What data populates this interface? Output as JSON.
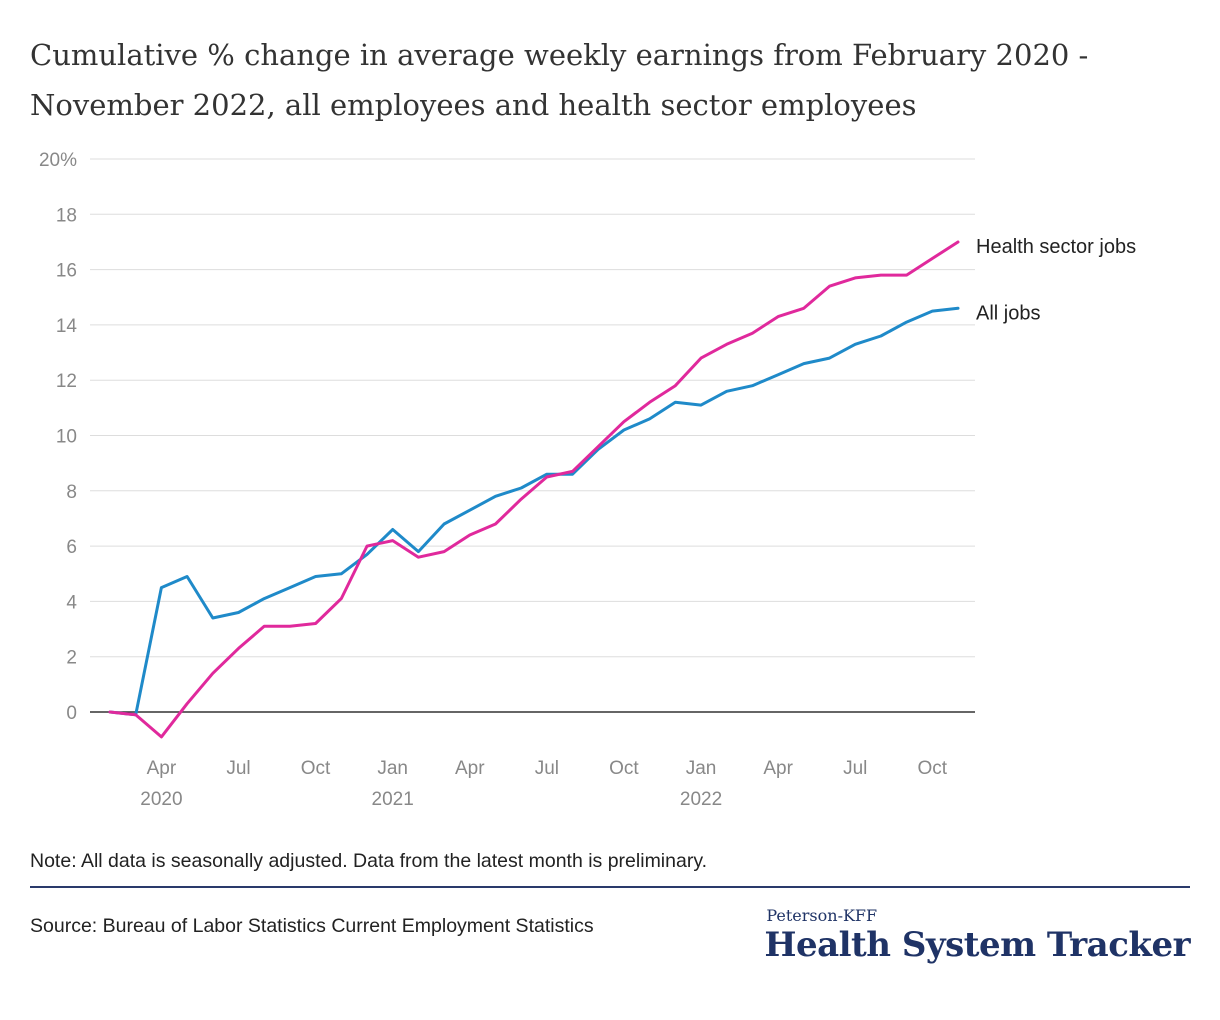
{
  "title": "Cumulative % change in average weekly earnings from February 2020 - November 2022, all employees and health sector employees",
  "note": "Note: All data is seasonally adjusted. Data from the latest month is preliminary.",
  "source": "Source: Bureau of Labor Statistics Current Employment Statistics",
  "brand": {
    "top": "Peterson-KFF",
    "main": "Health System Tracker"
  },
  "colors": {
    "health": "#e0299c",
    "all": "#1f8ac9",
    "grid": "#dddddd",
    "zero": "#333333",
    "tick": "#888888"
  },
  "chart_data": {
    "type": "line",
    "x": [
      "2020-02",
      "2020-03",
      "2020-04",
      "2020-05",
      "2020-06",
      "2020-07",
      "2020-08",
      "2020-09",
      "2020-10",
      "2020-11",
      "2020-12",
      "2021-01",
      "2021-02",
      "2021-03",
      "2021-04",
      "2021-05",
      "2021-06",
      "2021-07",
      "2021-08",
      "2021-09",
      "2021-10",
      "2021-11",
      "2021-12",
      "2022-01",
      "2022-02",
      "2022-03",
      "2022-04",
      "2022-05",
      "2022-06",
      "2022-07",
      "2022-08",
      "2022-09",
      "2022-10",
      "2022-11"
    ],
    "series": [
      {
        "name": "Health sector jobs",
        "color": "#e0299c",
        "values": [
          0,
          -0.1,
          -0.9,
          0.3,
          1.4,
          2.3,
          3.1,
          3.1,
          3.2,
          4.1,
          6.0,
          6.2,
          5.6,
          5.8,
          6.4,
          6.8,
          7.7,
          8.5,
          8.7,
          9.6,
          10.5,
          11.2,
          11.8,
          12.8,
          13.3,
          13.7,
          14.3,
          14.6,
          15.4,
          15.7,
          15.8,
          15.8,
          16.4,
          17.0
        ]
      },
      {
        "name": "All jobs",
        "color": "#1f8ac9",
        "values": [
          0,
          -0.1,
          4.5,
          4.9,
          3.4,
          3.6,
          4.1,
          4.5,
          4.9,
          5.0,
          5.7,
          6.6,
          5.8,
          6.8,
          7.3,
          7.8,
          8.1,
          8.6,
          8.6,
          9.5,
          10.2,
          10.6,
          11.2,
          11.1,
          11.6,
          11.8,
          12.2,
          12.6,
          12.8,
          13.3,
          13.6,
          14.1,
          14.5,
          14.6
        ]
      }
    ],
    "y_ticks": [
      "20%",
      "18",
      "16",
      "14",
      "12",
      "10",
      "8",
      "6",
      "4",
      "2",
      "0"
    ],
    "y_tick_values": [
      20,
      18,
      16,
      14,
      12,
      10,
      8,
      6,
      4,
      2,
      0
    ],
    "x_ticks": [
      {
        "label": "Apr",
        "at": "2020-04",
        "year": "2020"
      },
      {
        "label": "Jul",
        "at": "2020-07"
      },
      {
        "label": "Oct",
        "at": "2020-10"
      },
      {
        "label": "Jan",
        "at": "2021-01",
        "year": "2021"
      },
      {
        "label": "Apr",
        "at": "2021-04"
      },
      {
        "label": "Jul",
        "at": "2021-07"
      },
      {
        "label": "Oct",
        "at": "2021-10"
      },
      {
        "label": "Jan",
        "at": "2022-01",
        "year": "2022"
      },
      {
        "label": "Apr",
        "at": "2022-04"
      },
      {
        "label": "Jul",
        "at": "2022-07"
      },
      {
        "label": "Oct",
        "at": "2022-10"
      }
    ],
    "ylim": [
      -1,
      20
    ],
    "grid": true,
    "legend": "right"
  }
}
